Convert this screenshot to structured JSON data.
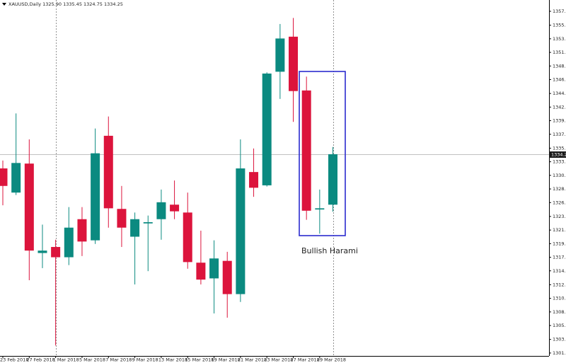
{
  "chart_data": {
    "type": "candlestick",
    "title": "XAUUSD,Daily  1325.90 1335.45 1324.75 1334.25",
    "categories": [
      "23 Feb 2018",
      null,
      "27 Feb 2018",
      null,
      "1 Mar 2018",
      null,
      "5 Mar 2018",
      null,
      "7 Mar 2018",
      null,
      "9 Mar 2018",
      null,
      "13 Mar 2018",
      null,
      "15 Mar 2018",
      null,
      "19 Mar 2018",
      null,
      "21 Mar 2018",
      null,
      "23 Mar 2018",
      null,
      "27 Mar 2018",
      null,
      "29 Mar 2018",
      null
    ],
    "open": [
      1331.9,
      1327.9,
      1332.7,
      1317.9,
      1318.9,
      1317.2,
      1323.5,
      1320.0,
      1337.3,
      1325.2,
      1320.6,
      1322.8,
      1323.5,
      1325.9,
      1324.6,
      1316.3,
      1313.7,
      1316.6,
      1311.1,
      1331.3,
      1329.1,
      1347.9,
      1353.7,
      1344.8,
      1325.1,
      1325.9
    ],
    "high": [
      1333.2,
      1341.0,
      1336.7,
      1322.6,
      1320.1,
      1325.5,
      1325.5,
      1338.5,
      1340.5,
      1329.0,
      1324.6,
      1324.1,
      1328.4,
      1329.9,
      1327.9,
      1321.6,
      1320.0,
      1318.1,
      1336.7,
      1335.2,
      1347.8,
      1355.8,
      1356.8,
      1347.1,
      1328.4,
      1335.45
    ],
    "low": [
      1325.8,
      1327.5,
      1313.4,
      1315.4,
      1302.6,
      1315.9,
      1317.4,
      1319.4,
      1322.1,
      1318.9,
      1312.7,
      1314.9,
      1320.1,
      1323.5,
      1315.3,
      1312.7,
      1307.9,
      1307.2,
      1309.8,
      1327.2,
      1328.9,
      1343.4,
      1339.6,
      1323.4,
      1321.1,
      1324.75
    ],
    "close": [
      1329.0,
      1332.8,
      1318.3,
      1318.3,
      1317.2,
      1322.1,
      1319.8,
      1334.4,
      1325.3,
      1322.1,
      1323.5,
      1323.0,
      1326.3,
      1324.8,
      1316.4,
      1313.5,
      1317.0,
      1311.1,
      1331.9,
      1328.7,
      1347.6,
      1353.4,
      1344.7,
      1324.9,
      1325.3,
      1334.25
    ],
    "up_color": "#0b8a80",
    "down_color": "#dc143c",
    "ylim": [
      1300.87,
      1359.77
    ],
    "yticks": [
      {
        "value": 1357.9,
        "label": "1357.90"
      },
      {
        "value": 1355.6,
        "label": "1355.60"
      },
      1353.35,
      {
        "value": 1351.1,
        "label": "1351.10"
      },
      1348.85,
      {
        "value": 1346.6,
        "label": "1346.60"
      },
      {
        "value": 1344.3,
        "label": "1344.30"
      },
      1342.05,
      {
        "value": 1339.8,
        "label": "1339.80"
      },
      1337.55,
      1335.25,
      {
        "value": 1333.0,
        "label": "1333.00"
      },
      1330.75,
      {
        "value": 1328.5,
        "label": "1328.50"
      },
      1326.25,
      1323.95,
      {
        "value": 1321.7,
        "label": "1321.70"
      },
      1319.45,
      {
        "value": 1317.2,
        "label": "1317.20"
      },
      1314.95,
      1312.65,
      {
        "value": 1310.4,
        "label": "1310.40"
      },
      1308.15,
      {
        "value": 1305.9,
        "label": "1305.90"
      },
      {
        "value": 1303.6,
        "label": "1303.60"
      },
      1301.35
    ],
    "current_price": {
      "value": 1334.25,
      "label": "1334.25"
    },
    "annotation": "Bullish Harami"
  }
}
